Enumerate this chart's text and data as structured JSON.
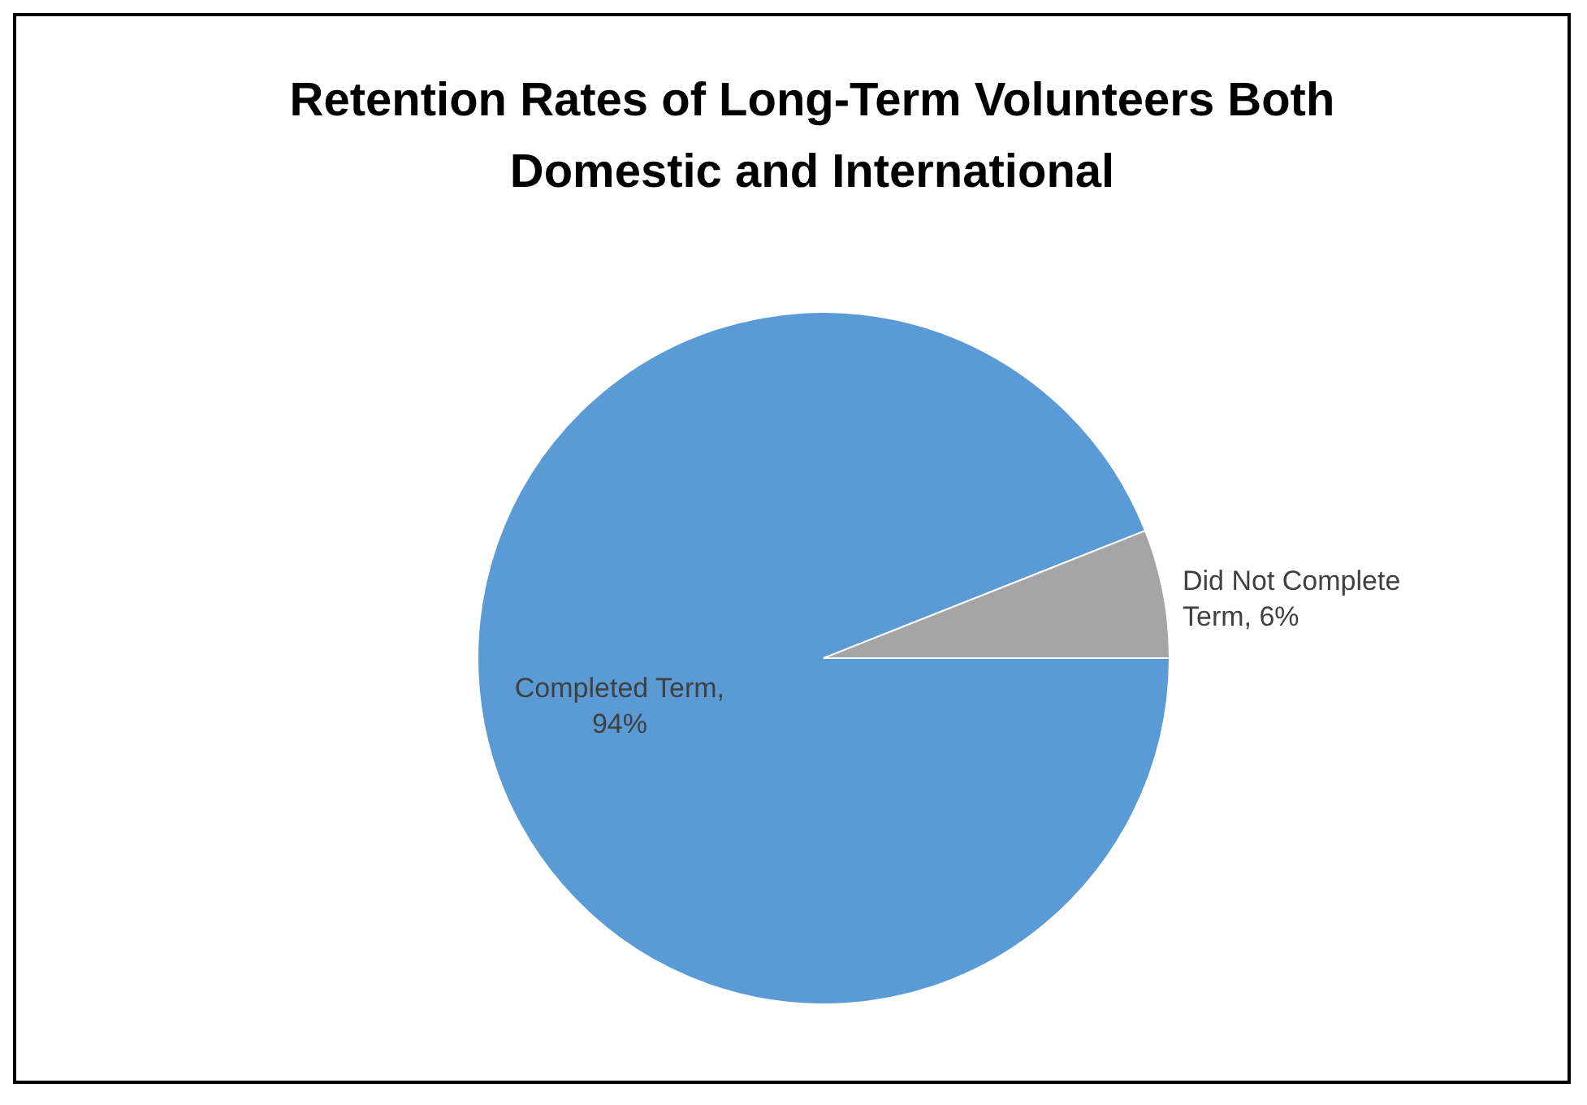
{
  "chart_data": {
    "type": "pie",
    "title": "Retention Rates of Long-Term Volunteers Both Domestic and International",
    "categories": [
      "Completed Term",
      "Did Not Complete Term"
    ],
    "values": [
      94,
      6
    ],
    "colors": [
      "#5b9bd5",
      "#a5a5a5"
    ],
    "value_labels": [
      ", 94%",
      ", 6%"
    ]
  }
}
